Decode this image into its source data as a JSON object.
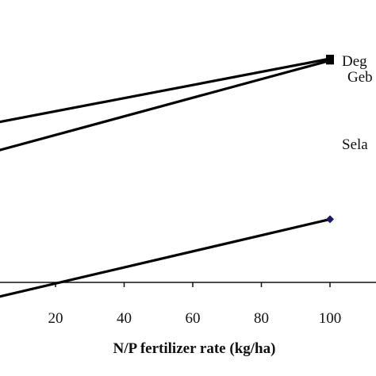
{
  "chart_data": {
    "type": "line",
    "title": "",
    "xlabel": "N/P fertilizer rate (kg/ha)",
    "ylabel": "",
    "xlim": [
      0,
      100
    ],
    "x_ticks": [
      20,
      40,
      60,
      80,
      100
    ],
    "grid": false,
    "legend": "none",
    "series": [
      {
        "name": "Deg",
        "x": [
          0,
          100
        ],
        "y": [
          0.82,
          1.0
        ],
        "marker": "square",
        "color": "#000000"
      },
      {
        "name": "Geb",
        "x": [
          0,
          100
        ],
        "y": [
          0.74,
          0.995
        ],
        "marker": "square",
        "color": "#000000"
      },
      {
        "name": "Sela",
        "x": [
          0,
          100
        ],
        "y": [
          0.34,
          0.56
        ],
        "marker": "diamond",
        "color": "#1a1a5e"
      }
    ]
  }
}
